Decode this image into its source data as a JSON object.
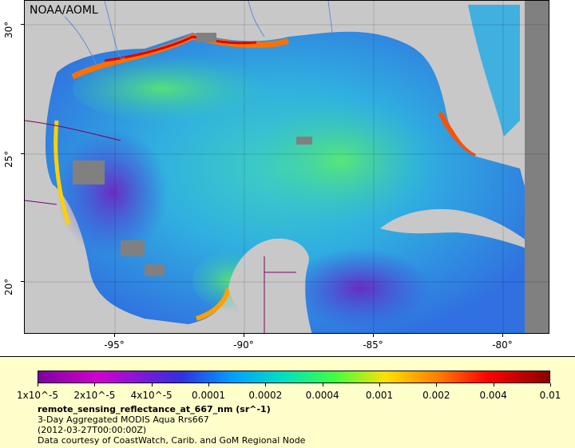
{
  "map": {
    "credit": "NOAA/AOML",
    "x_ticks": [
      "-95°",
      "-90°",
      "-85°",
      "-80°"
    ],
    "y_ticks": [
      "30°",
      "25°",
      "20°"
    ],
    "colors": {
      "land": "#c8c8c8",
      "nodata": "#808080",
      "water_base": "#40a0e0",
      "border": "#800060",
      "river": "#6090d0"
    }
  },
  "legend": {
    "colorbar_ticks": [
      "1x10^-5",
      "2x10^-5",
      "4x10^-5",
      "0.0001",
      "0.0002",
      "0.0004",
      "0.001",
      "0.002",
      "0.004",
      "0.01"
    ],
    "variable": "remote_sensing_reflectance_at_667_nm (sr^-1)",
    "product": "3-Day Aggregated MODIS Aqua Rrs667",
    "time": "(2012-03-27T00:00:00Z)",
    "source": "Data courtesy of CoastWatch, Carib. and GoM Regional Node"
  }
}
